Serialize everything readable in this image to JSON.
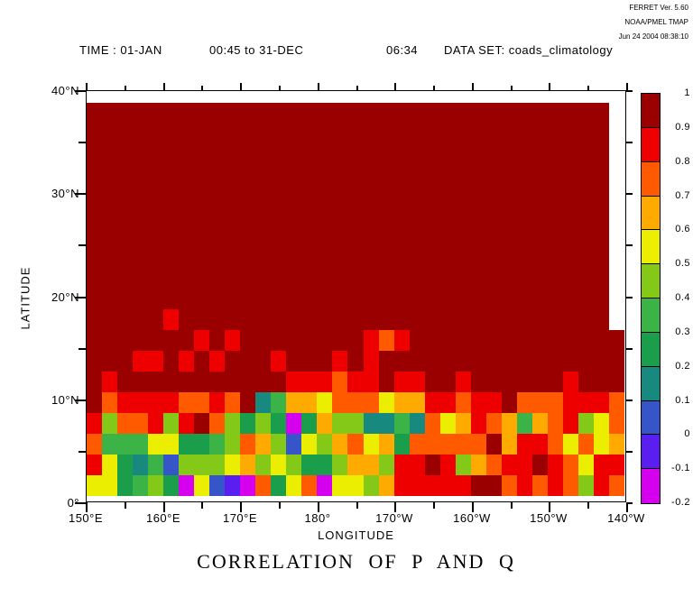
{
  "provenance": {
    "line1": "FERRET Ver. 5.60",
    "line2": "NOAA/PMEL TMAP",
    "line3": "Jun 24 2004 08:38:10"
  },
  "header": {
    "time_label": "TIME : 01-JAN",
    "time_start": "00:45 to 31-DEC",
    "time_end": "06:34",
    "dataset_label": "DATA SET: coads_climatology"
  },
  "title": "CORRELATION OF P AND Q",
  "axes": {
    "x_label": "LONGITUDE",
    "y_label": "LATITUDE",
    "x_tick_labels": [
      "150°E",
      "160°E",
      "170°E",
      "180°",
      "170°W",
      "160°W",
      "150°W",
      "140°W"
    ],
    "y_tick_labels_bottom_to_top": [
      "0°",
      "10°N",
      "20°N",
      "30°N",
      "40°N"
    ]
  },
  "colorbar": {
    "labels_top_to_bottom": [
      "1",
      "0.9",
      "0.8",
      "0.7",
      "0.6",
      "0.5",
      "0.4",
      "0.3",
      "0.2",
      "0.1",
      "0",
      "-0.1",
      "-0.2"
    ],
    "segment_codes_top_to_bottom": [
      "D",
      "R",
      "O",
      "A",
      "Y",
      "L",
      "G",
      "E",
      "T",
      "B",
      "V",
      "M"
    ]
  },
  "chart_data": {
    "type": "heatmap",
    "title": "CORRELATION OF P AND Q",
    "xlabel": "LONGITUDE",
    "ylabel": "LATITUDE",
    "x_range": [
      "150°E",
      "140°W"
    ],
    "y_range": [
      "0°",
      "40°N"
    ],
    "cell_size_degrees": 2,
    "n_cols": 35,
    "n_rows": 19,
    "palette": {
      "D": "#9B0000",
      "R": "#EE0000",
      "O": "#FF5A00",
      "A": "#FFAA00",
      "Y": "#EBEE00",
      "L": "#84C818",
      "G": "#3CB347",
      "E": "#1B9E4B",
      "T": "#17897E",
      "B": "#3555C8",
      "V": "#5A1EF0",
      "M": "#D400EE",
      "W": "#FFFFFF"
    },
    "value_bins": {
      "D": "0.9 to 1",
      "R": "0.8 to 0.9",
      "O": "0.7 to 0.8",
      "A": "0.6 to 0.7",
      "Y": "0.5 to 0.6",
      "L": "0.4 to 0.5",
      "G": "0.3 to 0.4",
      "E": "0.2 to 0.3",
      "T": "0.1 to 0.2",
      "B": "0 to 0.1",
      "V": "-0.1 to 0",
      "M": "-0.2 to -0.1",
      "W": "missing"
    },
    "grid_rows_top_to_bottom": [
      "DDDDDDDDDDDDDDDDDDDDDDDDDDDDDDDDDDW",
      "DDDDDDDDDDDDDDDDDDDDDDDDDDDDDDDDDDW",
      "DDDDDDDDDDDDDDDDDDDDDDDDDDDDDDDDDDW",
      "DDDDDDDDDDDDDDDDDDDDDDDDDDDDDDDDDDW",
      "DDDDDDDDDDDDDDDDDDDDDDDDDDDDDDDDDDW",
      "DDDDDDDDDDDDDDDDDDDDDDDDDDDDDDDDDDW",
      "DDDDDDDDDDDDDDDDDDDDDDDDDDDDDDDDDDW",
      "DDDDDDDDDDDDDDDDDDDDDDDDDDDDDDDDDDW",
      "DDDDDDDDDDDDDDDDDDDDDDDDDDDDDDDDDDW",
      "DDDDDDDDDDDDDDDDDDDDDDDDDDDDDDDDDDW",
      "DDDDDRDDDDDDDDDDDDDDDDDDDDDDDDDDDDW",
      "DDDDDDDRDRDDDDDDDDRORDDDDDDDDDDDDDD",
      "DDDRRDRDRDDDRDDDRDRDDDDDDDDDDDDDDDD",
      "DRDDDDDDDDDDDRRRORRDRRDDRDDDDDDRDDD",
      "DORRRROORODTGAAYOOOYAARRORRDOOORRRO",
      "RLOORLRDOLELEMEALLTTGTOYAROAGAORLYO",
      "OGGGYYEEGLOALBYLAOYAEOOOOODARROYOYA",
      "RYETGBLLLYALYLEELAALRRDRLAORRDROYRR",
      "YYEGLEMYBVMOEYOMYYLARRRRRDDOROROLRO"
    ]
  }
}
